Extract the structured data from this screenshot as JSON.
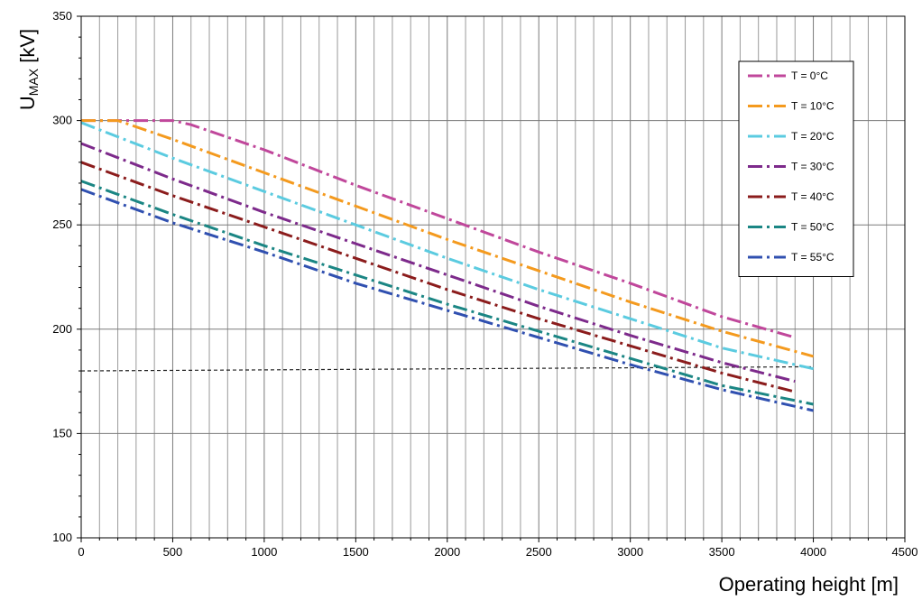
{
  "chart_data": {
    "type": "line",
    "title": "",
    "xlabel": "Operating height [m]",
    "ylabel": "U",
    "ylabel_subscript": "MAX",
    "ylabel_unit": " [kV]",
    "xlim": [
      0,
      4500
    ],
    "ylim": [
      100,
      350
    ],
    "x_ticks": [
      "0",
      "500",
      "1000",
      "1500",
      "2000",
      "2500",
      "3000",
      "3500",
      "4000",
      "4500"
    ],
    "y_ticks": [
      "100",
      "150",
      "200",
      "250",
      "300",
      "350"
    ],
    "x_tick_values": [
      0,
      500,
      1000,
      1500,
      2000,
      2500,
      3000,
      3500,
      4000,
      4500
    ],
    "y_tick_values": [
      100,
      150,
      200,
      250,
      300,
      350
    ],
    "x_grid_step": 100,
    "y_grid_step": 50,
    "grid": true,
    "legend_position": "top-right",
    "reference_line": {
      "x": [
        0,
        4000
      ],
      "y": [
        180,
        182
      ]
    },
    "series": [
      {
        "name": "T = 0°C",
        "color": "#c0479b",
        "x": [
          0,
          500,
          600,
          1000,
          1500,
          2000,
          2500,
          3000,
          3500,
          3900
        ],
        "y": [
          300,
          300,
          298,
          286,
          269,
          253,
          237,
          222,
          206,
          196
        ]
      },
      {
        "name": "T = 10°C",
        "color": "#f49a1e",
        "x": [
          0,
          200,
          500,
          1000,
          1500,
          2000,
          2500,
          3000,
          3500,
          4000
        ],
        "y": [
          300,
          300,
          291,
          275,
          259,
          243,
          228,
          213,
          199,
          187
        ]
      },
      {
        "name": "T = 20°C",
        "color": "#5bcbe0",
        "x": [
          0,
          500,
          1000,
          1500,
          2000,
          2500,
          3000,
          3500,
          4000
        ],
        "y": [
          299,
          282,
          266,
          250,
          234,
          219,
          205,
          191,
          181
        ]
      },
      {
        "name": "T = 30°C",
        "color": "#7d2a8b",
        "x": [
          0,
          500,
          1000,
          1500,
          2000,
          2500,
          3000,
          3500,
          3900
        ],
        "y": [
          289,
          272,
          256,
          241,
          226,
          211,
          197,
          184,
          175
        ]
      },
      {
        "name": "T = 40°C",
        "color": "#8b1c1c",
        "x": [
          0,
          500,
          1000,
          1500,
          2000,
          2500,
          3000,
          3500,
          3900
        ],
        "y": [
          280,
          264,
          249,
          234,
          219,
          205,
          192,
          179,
          170
        ]
      },
      {
        "name": "T = 50°C",
        "color": "#1b8684",
        "x": [
          0,
          500,
          1000,
          1500,
          2000,
          2500,
          3000,
          3500,
          4000
        ],
        "y": [
          271,
          255,
          240,
          226,
          212,
          199,
          186,
          173,
          164
        ]
      },
      {
        "name": "T = 55°C",
        "color": "#3050b0",
        "x": [
          0,
          500,
          1000,
          1500,
          2000,
          2500,
          3000,
          3500,
          4000
        ],
        "y": [
          267,
          251,
          237,
          222,
          209,
          196,
          183,
          171,
          161
        ]
      }
    ]
  }
}
